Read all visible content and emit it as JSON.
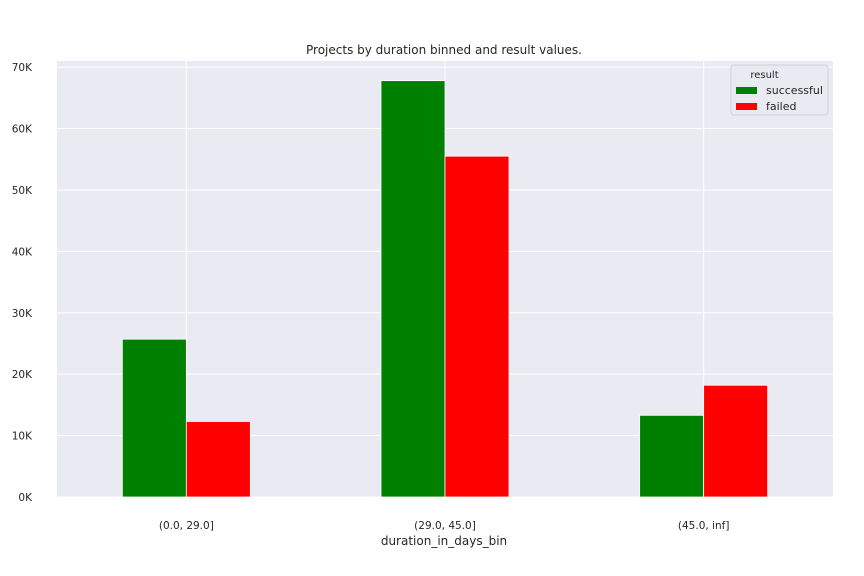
{
  "chart_data": {
    "type": "bar",
    "title": "Projects by duration binned and result values.",
    "xlabel": "duration_in_days_bin",
    "ylabel": "",
    "categories": [
      "(0.0, 29.0]",
      "(29.0, 45.0]",
      "(45.0, inf]"
    ],
    "series": [
      {
        "name": "successful",
        "color": "#008000",
        "values": [
          25700,
          67800,
          13300
        ]
      },
      {
        "name": "failed",
        "color": "#ff0000",
        "values": [
          12300,
          55500,
          18200
        ]
      }
    ],
    "ylim": [
      0,
      71000
    ],
    "yticks": [
      0,
      10000,
      20000,
      30000,
      40000,
      50000,
      60000,
      70000
    ],
    "ytick_labels": [
      "0K",
      "10K",
      "20K",
      "30K",
      "40K",
      "50K",
      "60K",
      "70K"
    ],
    "grid": true,
    "legend": {
      "title": "result",
      "placement": "top-right"
    },
    "colors": {
      "plot_background": "#eaeaf2",
      "grid": "#ffffff"
    }
  }
}
